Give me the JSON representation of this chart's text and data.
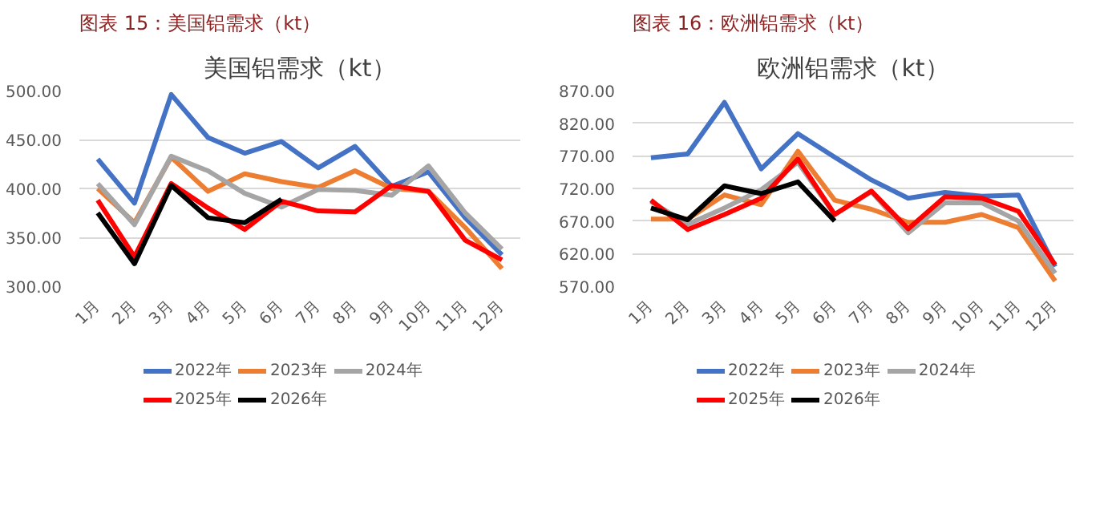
{
  "chart_data": [
    {
      "type": "line",
      "title": "图表 15：美国铝需求（kt）",
      "subtitle": "美国铝需求（kt）",
      "categories": [
        "1月",
        "2月",
        "3月",
        "4月",
        "5月",
        "6月",
        "7月",
        "8月",
        "9月",
        "10月",
        "11月",
        "12月"
      ],
      "ylim": [
        300,
        500
      ],
      "yticks": [
        {
          "value": 300,
          "label": "300.00"
        },
        {
          "value": 350,
          "label": "350.00"
        },
        {
          "value": 400,
          "label": "400.00"
        },
        {
          "value": 450,
          "label": "450.00"
        },
        {
          "value": 500,
          "label": "500.00"
        }
      ],
      "grid": "y",
      "legend": "bottom",
      "marker": "none",
      "line_style": "solid",
      "series": [
        {
          "name": "2022年",
          "color": "#4472c4",
          "values": [
            430,
            385,
            496,
            452,
            436,
            448,
            421,
            443,
            402,
            417,
            370,
            332
          ]
        },
        {
          "name": "2023年",
          "color": "#ed7d31",
          "values": [
            400,
            365,
            432,
            397,
            415,
            407,
            401,
            418,
            400,
            397,
            360,
            318
          ]
        },
        {
          "name": "2024年",
          "color": "#a5a5a5",
          "values": [
            405,
            363,
            433,
            418,
            395,
            381,
            399,
            398,
            393,
            423,
            375,
            338
          ]
        },
        {
          "name": "2025年",
          "color": "#ff0000",
          "values": [
            388,
            330,
            405,
            380,
            358,
            387,
            377,
            376,
            403,
            397,
            347,
            327
          ]
        },
        {
          "name": "2026年",
          "color": "#000000",
          "values": [
            375,
            323,
            403,
            370,
            365,
            389,
            null,
            null,
            null,
            null,
            null,
            null
          ]
        }
      ]
    },
    {
      "type": "line",
      "title": "图表 16：欧洲铝需求（kt）",
      "subtitle": "欧洲铝需求（kt）",
      "categories": [
        "1月",
        "2月",
        "3月",
        "4月",
        "5月",
        "6月",
        "7月",
        "8月",
        "9月",
        "10月",
        "11月",
        "12月"
      ],
      "ylim": [
        570,
        870
      ],
      "yticks": [
        {
          "value": 570,
          "label": "570.00"
        },
        {
          "value": 620,
          "label": "620.00"
        },
        {
          "value": 670,
          "label": "670.00"
        },
        {
          "value": 720,
          "label": "720.00"
        },
        {
          "value": 770,
          "label": "770.00"
        },
        {
          "value": 820,
          "label": "820.00"
        },
        {
          "value": 870,
          "label": "870.00"
        }
      ],
      "grid": "y",
      "legend": "bottom",
      "marker": "none",
      "line_style": "solid",
      "series": [
        {
          "name": "2022年",
          "color": "#4472c4",
          "values": [
            767,
            773,
            852,
            750,
            804,
            768,
            733,
            705,
            714,
            708,
            710,
            600
          ]
        },
        {
          "name": "2023年",
          "color": "#ed7d31",
          "values": [
            673,
            673,
            710,
            695,
            777,
            702,
            688,
            668,
            668,
            680,
            660,
            578
          ]
        },
        {
          "name": "2024年",
          "color": "#a5a5a5",
          "values": [
            700,
            665,
            690,
            718,
            760,
            680,
            715,
            652,
            698,
            698,
            670,
            590
          ]
        },
        {
          "name": "2025年",
          "color": "#ff0000",
          "values": [
            702,
            657,
            680,
            705,
            765,
            680,
            716,
            658,
            707,
            705,
            685,
            603
          ]
        },
        {
          "name": "2026年",
          "color": "#000000",
          "values": [
            690,
            672,
            724,
            712,
            730,
            670,
            null,
            null,
            null,
            null,
            null,
            null
          ]
        }
      ]
    }
  ]
}
